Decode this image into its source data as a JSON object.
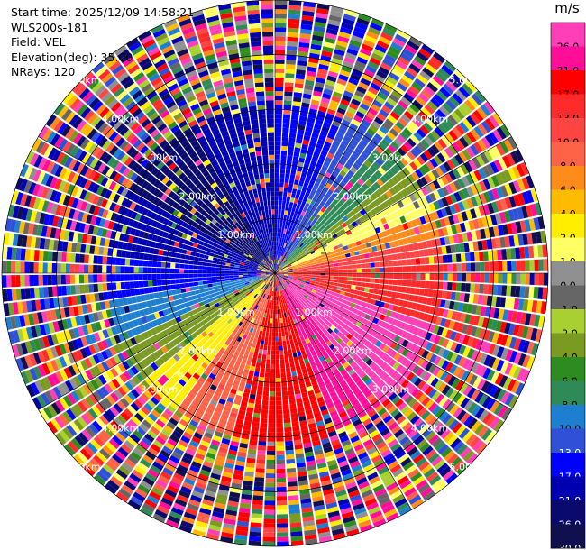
{
  "header": {
    "start_time": "Start time: 2025/12/09 14:58:21",
    "instrument": "WLS200s-181",
    "field": "Field: VEL",
    "elevation": "Elevation(deg): 35.00",
    "nrays": "NRays: 120"
  },
  "colorbar": {
    "unit": "m/s",
    "levels": [
      {
        "label": "26.0",
        "color": "#ff3fb8"
      },
      {
        "label": "21.0",
        "color": "#ff0f99"
      },
      {
        "label": "17.0",
        "color": "#ff0000"
      },
      {
        "label": "13.0",
        "color": "#ff2b2b"
      },
      {
        "label": "10.0",
        "color": "#ff4444"
      },
      {
        "label": "8.0",
        "color": "#ff6347"
      },
      {
        "label": "6.0",
        "color": "#ff8c1a"
      },
      {
        "label": "4.0",
        "color": "#ffbb00"
      },
      {
        "label": "2.0",
        "color": "#ffee00"
      },
      {
        "label": "1.0",
        "color": "#ffff66"
      },
      {
        "label": "0.0",
        "color": "#909090"
      },
      {
        "label": "-1.0",
        "color": "#666666"
      },
      {
        "label": "-2.0",
        "color": "#a8d030"
      },
      {
        "label": "-4.0",
        "color": "#7a9a22"
      },
      {
        "label": "-6.0",
        "color": "#2e8b22"
      },
      {
        "label": "-8.0",
        "color": "#2e8b57"
      },
      {
        "label": "-10.0",
        "color": "#1e7fd0"
      },
      {
        "label": "-13.0",
        "color": "#3050d8"
      },
      {
        "label": "-17.0",
        "color": "#0000ff"
      },
      {
        "label": "-21.0",
        "color": "#0000b0"
      },
      {
        "label": "-26.0",
        "color": "#0a0a6e"
      },
      {
        "label": "-30.0",
        "color": "#101050"
      }
    ]
  },
  "chart_data": {
    "type": "heatmap",
    "subtype": "polar PPI scan",
    "field": "VEL",
    "units": "m/s",
    "nrays": 120,
    "range_rings_km": [
      1.0,
      2.0,
      3.0,
      4.0,
      5.0
    ],
    "ring_labels": [
      "1.00km",
      "2.00km",
      "3.00km",
      "4.00km",
      "5.00km"
    ],
    "clean_range_km": 3.0,
    "azimuth_sectors": [
      {
        "from_deg": 0,
        "to_deg": 25,
        "value": -17.0
      },
      {
        "from_deg": 25,
        "to_deg": 40,
        "value": -13.0
      },
      {
        "from_deg": 40,
        "to_deg": 52,
        "value": -8.0
      },
      {
        "from_deg": 52,
        "to_deg": 60,
        "value": -4.0
      },
      {
        "from_deg": 60,
        "to_deg": 68,
        "value": 1.0
      },
      {
        "from_deg": 68,
        "to_deg": 78,
        "value": 6.0
      },
      {
        "from_deg": 78,
        "to_deg": 88,
        "value": 10.0
      },
      {
        "from_deg": 88,
        "to_deg": 108,
        "value": 13.0
      },
      {
        "from_deg": 108,
        "to_deg": 140,
        "value": 26.0
      },
      {
        "from_deg": 140,
        "to_deg": 160,
        "value": 21.0
      },
      {
        "from_deg": 160,
        "to_deg": 180,
        "value": 17.0
      },
      {
        "from_deg": 180,
        "to_deg": 195,
        "value": 17.0
      },
      {
        "from_deg": 195,
        "to_deg": 215,
        "value": 8.0
      },
      {
        "from_deg": 215,
        "to_deg": 230,
        "value": 2.0
      },
      {
        "from_deg": 230,
        "to_deg": 245,
        "value": -4.0
      },
      {
        "from_deg": 245,
        "to_deg": 260,
        "value": -10.0
      },
      {
        "from_deg": 260,
        "to_deg": 275,
        "value": -17.0
      },
      {
        "from_deg": 275,
        "to_deg": 300,
        "value": -21.0
      },
      {
        "from_deg": 300,
        "to_deg": 330,
        "value": -26.0
      },
      {
        "from_deg": 330,
        "to_deg": 360,
        "value": -21.0
      }
    ]
  }
}
